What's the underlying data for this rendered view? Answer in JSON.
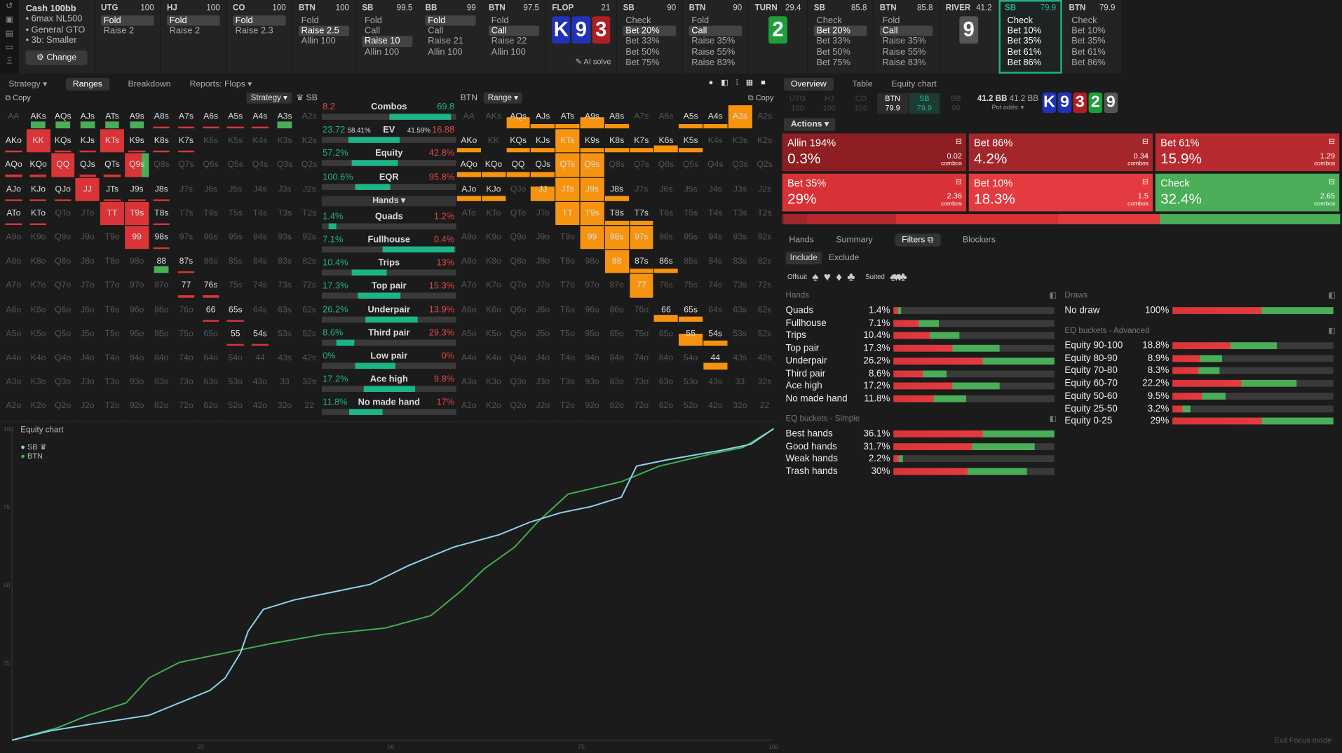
{
  "side_icons": [
    "undo-icon",
    "save-icon",
    "print-icon",
    "car-icon",
    "layers-icon"
  ],
  "cash": {
    "title": "Cash 100bb",
    "items": [
      "6max NL500",
      "General GTO",
      "3b: Smaller"
    ],
    "change": "Change"
  },
  "positions": [
    {
      "pos": "UTG",
      "stack": "100",
      "actions": [
        "Fold",
        "Raise 2"
      ],
      "sel": 0
    },
    {
      "pos": "HJ",
      "stack": "100",
      "actions": [
        "Fold",
        "Raise 2"
      ],
      "sel": 0
    },
    {
      "pos": "CO",
      "stack": "100",
      "actions": [
        "Fold",
        "Raise 2.3"
      ],
      "sel": 0
    },
    {
      "pos": "BTN",
      "stack": "100",
      "actions": [
        "Fold",
        "Raise 2.5",
        "Allin 100"
      ],
      "sel": 1
    },
    {
      "pos": "SB",
      "stack": "99.5",
      "actions": [
        "Fold",
        "Call",
        "Raise 10",
        "Allin 100"
      ],
      "sel": 2
    },
    {
      "pos": "BB",
      "stack": "99",
      "actions": [
        "Fold",
        "Call",
        "Raise 21",
        "Allin 100"
      ],
      "sel": 0
    },
    {
      "pos": "BTN",
      "stack": "97.5",
      "actions": [
        "Fold",
        "Call",
        "Raise 22",
        "Allin 100"
      ],
      "sel": 1
    }
  ],
  "flop": {
    "label": "FLOP",
    "pot": "21",
    "cards": [
      "K",
      "9",
      "3"
    ],
    "ai": "AI solve"
  },
  "flop_actions": [
    {
      "pos": "SB",
      "stack": "90",
      "actions": [
        "Check",
        "Bet 20%",
        "Bet 33%",
        "Bet 50%",
        "Bet 75%"
      ],
      "sel": 1
    },
    {
      "pos": "BTN",
      "stack": "90",
      "actions": [
        "Fold",
        "Call",
        "Raise 35%",
        "Raise 55%",
        "Raise 83%"
      ],
      "sel": 1
    }
  ],
  "turn": {
    "label": "TURN",
    "pot": "29.4",
    "card": "2"
  },
  "turn_actions": [
    {
      "pos": "SB",
      "stack": "85.8",
      "actions": [
        "Check",
        "Bet 20%",
        "Bet 33%",
        "Bet 50%",
        "Bet 75%"
      ],
      "sel": 1
    },
    {
      "pos": "BTN",
      "stack": "85.8",
      "actions": [
        "Fold",
        "Call",
        "Raise 35%",
        "Raise 55%",
        "Raise 83%"
      ],
      "sel": 1
    }
  ],
  "river": {
    "label": "RIVER",
    "pot": "41.2",
    "card": "9"
  },
  "river_actions": [
    {
      "pos": "SB",
      "stack": "79.9",
      "actions": [
        "Check",
        "Bet 10%",
        "Bet 35%",
        "Bet 61%",
        "Bet 86%"
      ],
      "sel": -1
    },
    {
      "pos": "BTN",
      "stack": "79.9",
      "actions": [
        "Check",
        "Bet 10%",
        "Bet 35%",
        "Bet 61%",
        "Bet 86%"
      ],
      "sel": -1
    }
  ],
  "left_tabs": [
    "Strategy",
    "Ranges",
    "Breakdown",
    "Reports: Flops"
  ],
  "copy": "Copy",
  "sb_range": {
    "dropdown": "Strategy",
    "player": "SB"
  },
  "btn_range": {
    "player": "BTN",
    "dropdown": "Range"
  },
  "stats": {
    "combos": {
      "l": "8.2",
      "m": "Combos",
      "r": "69.8",
      "bar": 0.12
    },
    "ev": {
      "l": "23.72",
      "lp": "58.41%",
      "m": "EV",
      "rp": "41.59%",
      "r": "16.88",
      "bar": 0.58
    },
    "equity": {
      "l": "57.2%",
      "m": "Equity",
      "r": "42.8%",
      "bar": 0.57
    },
    "eqr": {
      "l": "100.6%",
      "m": "EQR",
      "r": "95.8%",
      "bar": 0.51
    },
    "hands_label": "Hands",
    "rows": [
      {
        "l": "1.4%",
        "m": "Quads",
        "r": "1.2%",
        "bar": 0.1
      },
      {
        "l": "7.1%",
        "m": "Fullhouse",
        "r": "0.4%",
        "bar": 0.9
      },
      {
        "l": "10.4%",
        "m": "Trips",
        "r": "13%",
        "bar": 0.44
      },
      {
        "l": "17.3%",
        "m": "Top pair",
        "r": "15.3%",
        "bar": 0.53
      },
      {
        "l": "26.2%",
        "m": "Underpair",
        "r": "13.9%",
        "bar": 0.65
      },
      {
        "l": "8.6%",
        "m": "Third pair",
        "r": "29.3%",
        "bar": 0.22
      },
      {
        "l": "0%",
        "m": "Low pair",
        "r": "0%",
        "bar": 0.5
      },
      {
        "l": "17.2%",
        "m": "Ace high",
        "r": "9.8%",
        "bar": 0.63
      },
      {
        "l": "11.8%",
        "m": "No made hand",
        "r": "17%",
        "bar": 0.41
      }
    ]
  },
  "equity_chart": {
    "title": "Equity chart",
    "legend": [
      "SB",
      "BTN"
    ],
    "colors": {
      "SB": "#8fd3f0",
      "BTN": "#3fb24f"
    },
    "yticks": [
      "100",
      "75",
      "50",
      "25"
    ],
    "xticks": [
      "25",
      "50",
      "75",
      "100"
    ]
  },
  "right_tabs": [
    "Overview",
    "Table",
    "Equity chart"
  ],
  "right_positions": [
    {
      "p": "UTG",
      "s": "100"
    },
    {
      "p": "HJ",
      "s": "100"
    },
    {
      "p": "CO",
      "s": "100"
    },
    {
      "p": "BTN",
      "s": "79.9"
    },
    {
      "p": "SB",
      "s": "79.9"
    },
    {
      "p": "BB",
      "s": "99"
    }
  ],
  "pot": {
    "main": "41.2 BB",
    "side": "41.2 BB",
    "odds": "Pot odds:"
  },
  "board": [
    "K",
    "9",
    "3",
    "2",
    "9"
  ],
  "actions_label": "Actions",
  "actions": [
    {
      "name": "Allin 194%",
      "pct": "0.3%",
      "combos": "0.02",
      "color": "#8e1e22"
    },
    {
      "name": "Bet 86%",
      "pct": "4.2%",
      "combos": "0.34",
      "color": "#a3262b"
    },
    {
      "name": "Bet 61%",
      "pct": "15.9%",
      "combos": "1.29",
      "color": "#b82a2f"
    },
    {
      "name": "Bet 35%",
      "pct": "29%",
      "combos": "2.36",
      "color": "#d83237"
    },
    {
      "name": "Bet 10%",
      "pct": "18.3%",
      "combos": "1.5",
      "color": "#e33b40"
    },
    {
      "name": "Check",
      "pct": "32.4%",
      "combos": "2.65",
      "color": "#4aad58"
    }
  ],
  "combos_word": "combos",
  "sub_tabs": [
    "Hands",
    "Summary",
    "Filters",
    "Blockers"
  ],
  "incl": [
    "Include",
    "Exclude"
  ],
  "offsuit": "Offsuit",
  "suited": "Suited",
  "hands_title": "Hands",
  "hands": [
    {
      "n": "Quads",
      "v": "1.4%",
      "w": 0.05
    },
    {
      "n": "Fullhouse",
      "v": "7.1%",
      "w": 0.28
    },
    {
      "n": "Trips",
      "v": "10.4%",
      "w": 0.41
    },
    {
      "n": "Top pair",
      "v": "17.3%",
      "w": 0.66
    },
    {
      "n": "Underpair",
      "v": "26.2%",
      "w": 1.0
    },
    {
      "n": "Third pair",
      "v": "8.6%",
      "w": 0.33
    },
    {
      "n": "Ace high",
      "v": "17.2%",
      "w": 0.66
    },
    {
      "n": "No made hand",
      "v": "11.8%",
      "w": 0.45
    }
  ],
  "simple_title": "EQ buckets - Simple",
  "simple": [
    {
      "n": "Best hands",
      "v": "36.1%",
      "w": 1.0
    },
    {
      "n": "Good hands",
      "v": "31.7%",
      "w": 0.88
    },
    {
      "n": "Weak hands",
      "v": "2.2%",
      "w": 0.06
    },
    {
      "n": "Trash hands",
      "v": "30%",
      "w": 0.83
    }
  ],
  "draws_title": "Draws",
  "draws": [
    {
      "n": "No draw",
      "v": "100%",
      "w": 1.0
    }
  ],
  "adv_title": "EQ buckets - Advanced",
  "adv": [
    {
      "n": "Equity 90-100",
      "v": "18.8%",
      "w": 0.65
    },
    {
      "n": "Equity 80-90",
      "v": "8.9%",
      "w": 0.31
    },
    {
      "n": "Equity 70-80",
      "v": "8.3%",
      "w": 0.29
    },
    {
      "n": "Equity 60-70",
      "v": "22.2%",
      "w": 0.77
    },
    {
      "n": "Equity 50-60",
      "v": "9.5%",
      "w": 0.33
    },
    {
      "n": "Equity 25-50",
      "v": "3.2%",
      "w": 0.11
    },
    {
      "n": "Equity 0-25",
      "v": "29%",
      "w": 1.0
    }
  ],
  "exit": "Exit Focus mode"
}
